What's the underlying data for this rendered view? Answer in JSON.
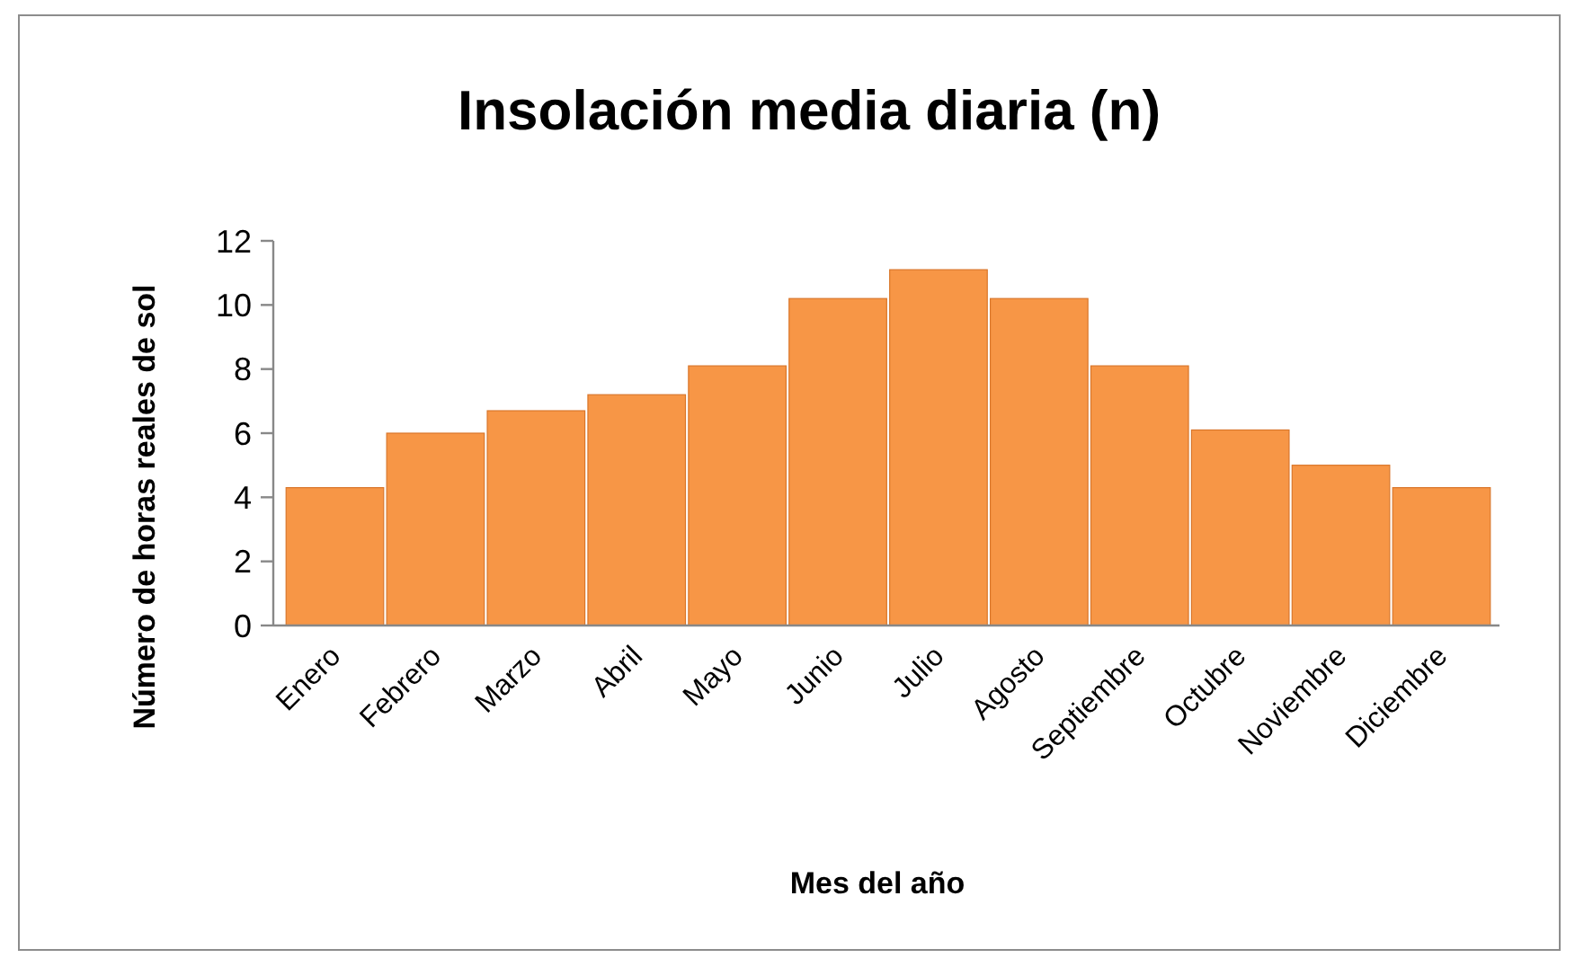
{
  "chart_data": {
    "type": "bar",
    "title": "Insolación media diaria (n)",
    "xlabel": "Mes del año",
    "ylabel": "Número de horas reales de sol",
    "categories": [
      "Enero",
      "Febrero",
      "Marzo",
      "Abril",
      "Mayo",
      "Junio",
      "Julio",
      "Agosto",
      "Septiembre",
      "Octubre",
      "Noviembre",
      "Diciembre"
    ],
    "values": [
      4.3,
      6.0,
      6.7,
      7.2,
      8.1,
      10.2,
      11.1,
      10.2,
      8.1,
      6.1,
      5.0,
      4.3
    ],
    "color": "#f79646",
    "ylim": [
      0,
      12
    ],
    "yticks": [
      0,
      2,
      4,
      6,
      8,
      10,
      12
    ]
  }
}
